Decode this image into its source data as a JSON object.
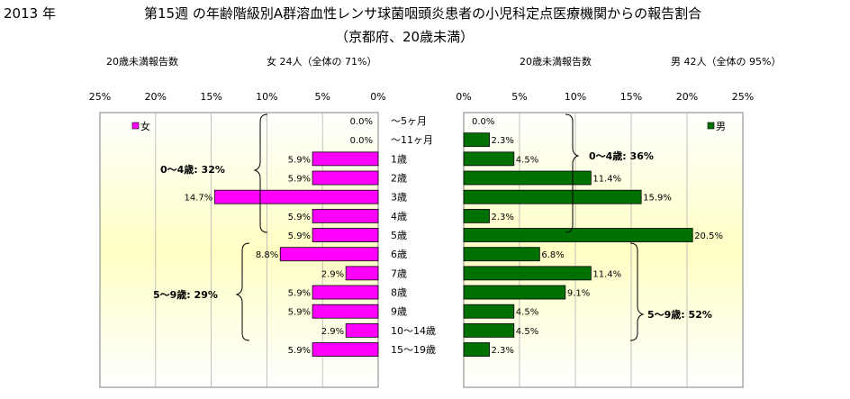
{
  "header": {
    "year": "2013 年",
    "title_line1": "第15週 の年齢階級別A群溶血性レンサ球菌咽頭炎患者の小児科定点医療機関からの報告割合",
    "title_line2": "（京都府、20歳未満）",
    "female_caption": "20歳未満報告数",
    "female_summary": "女  24人（全体の  71%）",
    "male_caption": "20歳未満報告数",
    "male_summary": "男  42人（全体の  95%）"
  },
  "chart_data": {
    "type": "bar",
    "orientation": "horizontal-population-pyramid",
    "categories": [
      "～5ヶ月",
      "～11ヶ月",
      "1歳",
      "2歳",
      "3歳",
      "4歳",
      "5歳",
      "6歳",
      "7歳",
      "8歳",
      "9歳",
      "10～14歳",
      "15～19歳"
    ],
    "series": [
      {
        "name": "女",
        "color": "#ff00ff",
        "values": [
          0.0,
          0.0,
          5.9,
          5.9,
          14.7,
          5.9,
          5.9,
          8.8,
          2.9,
          5.9,
          5.9,
          2.9,
          5.9
        ],
        "labels": [
          "0.0%",
          "0.0%",
          "5.9%",
          "5.9%",
          "14.7%",
          "5.9%",
          "5.9%",
          "8.8%",
          "2.9%",
          "5.9%",
          "5.9%",
          "2.9%",
          "5.9%"
        ]
      },
      {
        "name": "男",
        "color": "#007000",
        "values": [
          0.0,
          2.3,
          4.5,
          11.4,
          15.9,
          2.3,
          20.5,
          6.8,
          11.4,
          9.1,
          4.5,
          4.5,
          2.3
        ],
        "labels": [
          "0.0%",
          "2.3%",
          "4.5%",
          "11.4%",
          "15.9%",
          "2.3%",
          "20.5%",
          "6.8%",
          "11.4%",
          "9.1%",
          "4.5%",
          "4.5%",
          "2.3%"
        ]
      }
    ],
    "xlim": [
      0,
      25
    ],
    "female_ticks": [
      "25%",
      "20%",
      "15%",
      "10%",
      "5%",
      "0%"
    ],
    "male_ticks": [
      "0%",
      "5%",
      "10%",
      "15%",
      "20%",
      "25%"
    ],
    "grid": true,
    "annotations": {
      "female_0_4": "0～4歳:  32%",
      "female_5_9": "5～9歳:  29%",
      "male_0_4": "0～4歳:  36%",
      "male_5_9": "5～9歳:  52%"
    }
  }
}
